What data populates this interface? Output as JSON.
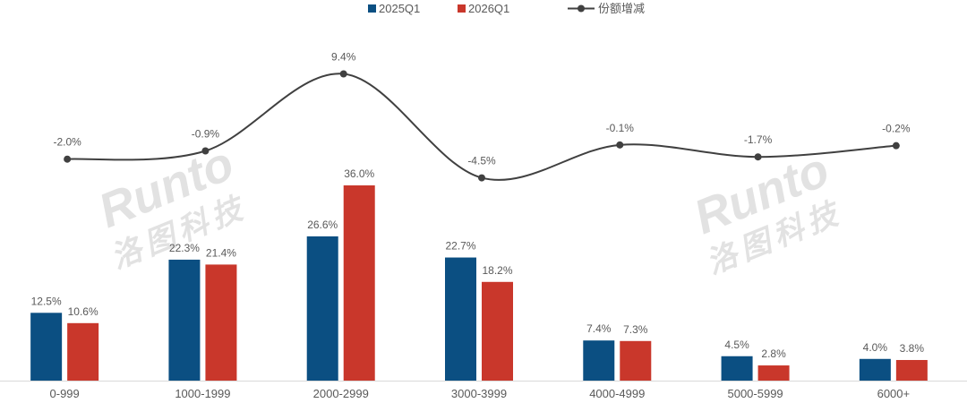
{
  "chart_data": {
    "type": "bar",
    "categories": [
      "0-999",
      "1000-1999",
      "2000-2999",
      "3000-3999",
      "4000-4999",
      "5000-5999",
      "6000+"
    ],
    "series": [
      {
        "name": "2025Q1",
        "type": "bar",
        "color": "#0b4f82",
        "values": [
          12.5,
          22.3,
          26.6,
          22.7,
          7.4,
          4.5,
          4.0
        ],
        "labels": [
          "12.5%",
          "22.3%",
          "26.6%",
          "22.7%",
          "7.4%",
          "4.5%",
          "4.0%"
        ]
      },
      {
        "name": "2026Q1",
        "type": "bar",
        "color": "#c9372b",
        "values": [
          10.6,
          21.4,
          36.0,
          18.2,
          7.3,
          2.8,
          3.8
        ],
        "labels": [
          "10.6%",
          "21.4%",
          "36.0%",
          "18.2%",
          "7.3%",
          "2.8%",
          "3.8%"
        ]
      },
      {
        "name": "份额增减",
        "type": "line",
        "color": "#404040",
        "values": [
          -2.0,
          -0.9,
          9.4,
          -4.5,
          -0.1,
          -1.7,
          -0.2
        ],
        "labels": [
          "-2.0%",
          "-0.9%",
          "9.4%",
          "-4.5%",
          "-0.1%",
          "-1.7%",
          "-0.2%"
        ]
      }
    ],
    "legend_position": "top-center",
    "grid": false
  },
  "watermark": {
    "logo_text": "Runto",
    "brand_cn": "洛图科技"
  }
}
